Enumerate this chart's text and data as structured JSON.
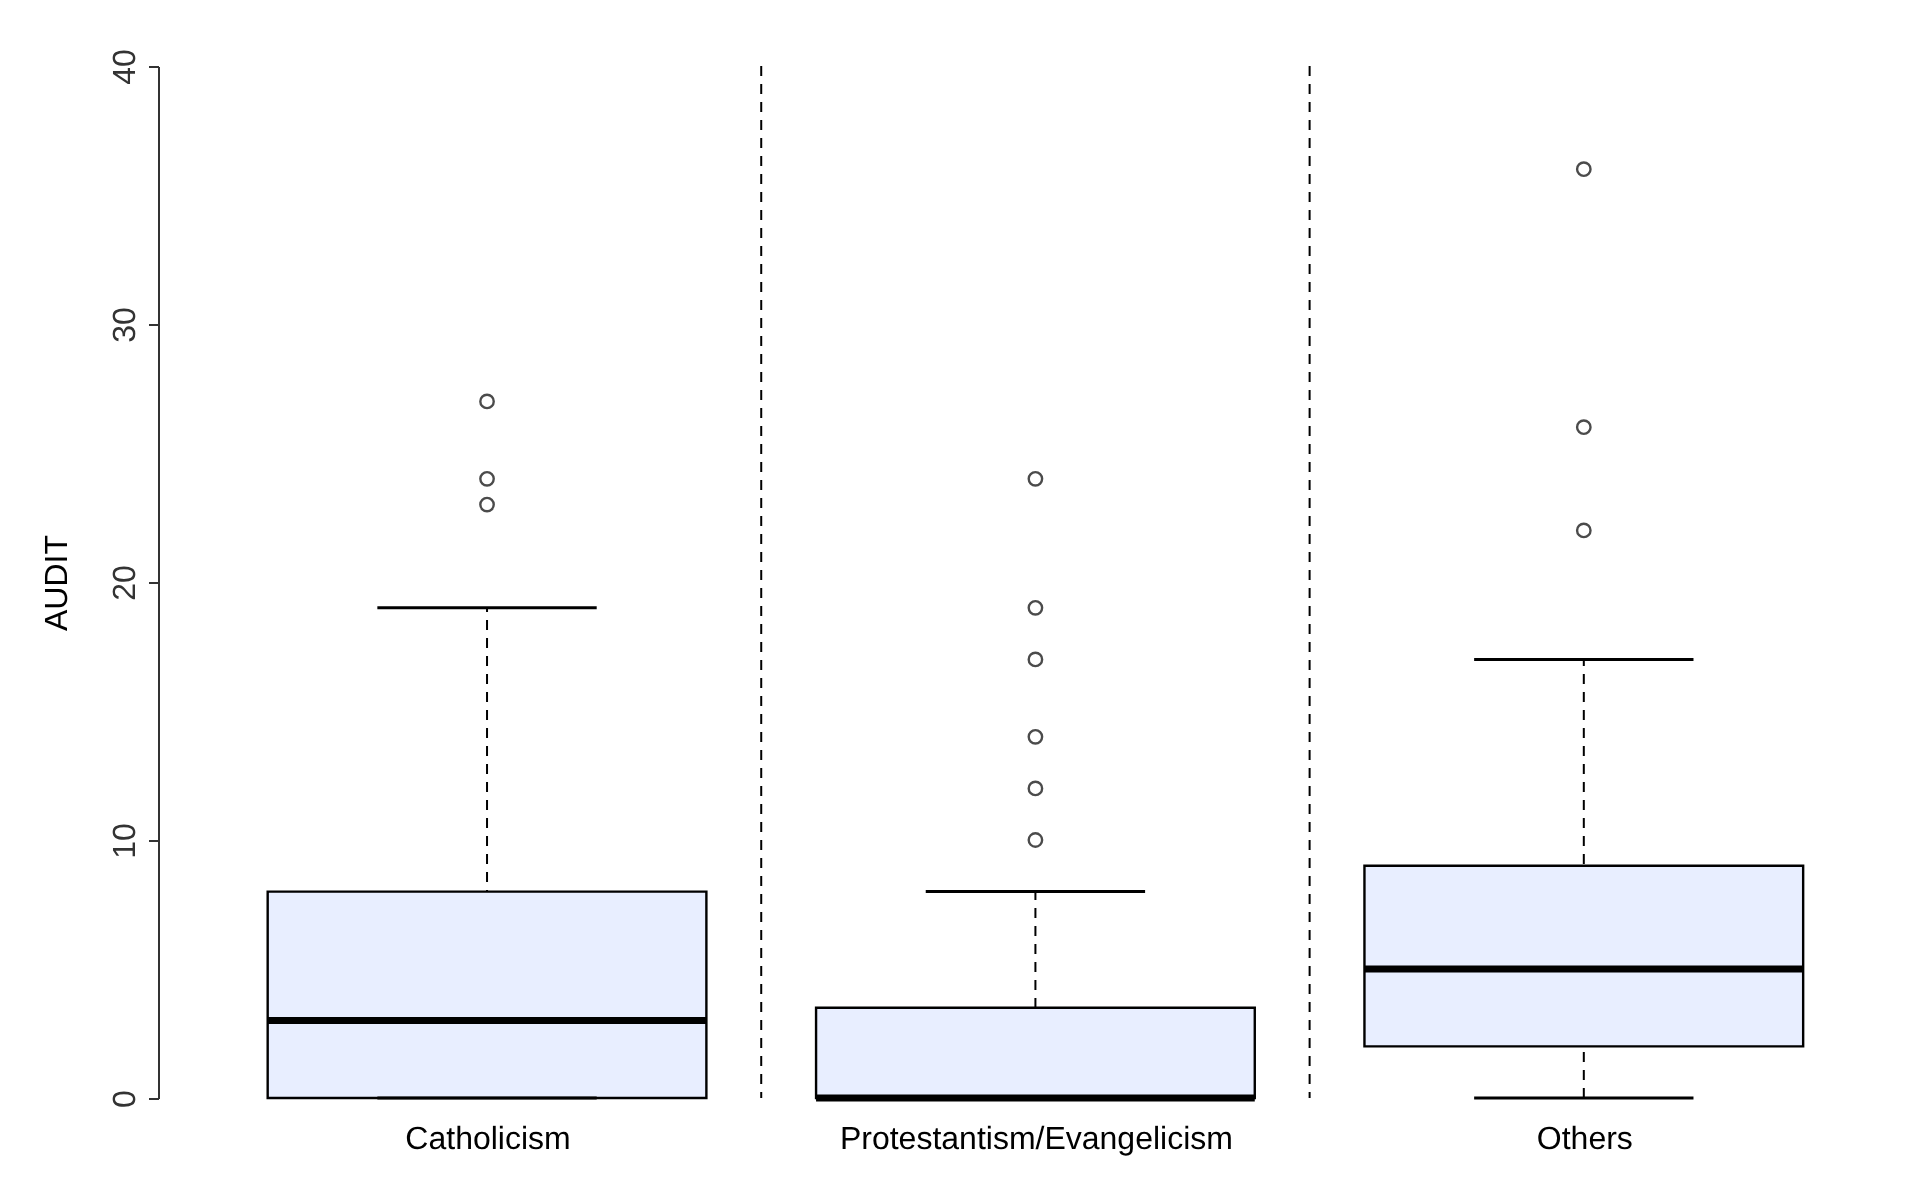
{
  "chart_data": {
    "type": "box",
    "ylabel": "AUDIT",
    "categories": [
      "Catholicism",
      "Protestantism/Evangelicism",
      "Others"
    ],
    "boxes": [
      {
        "low": 0,
        "q1": 0,
        "median": 3,
        "q3": 8,
        "high": 19,
        "outliers": [
          23,
          24,
          27
        ]
      },
      {
        "low": 0,
        "q1": 0,
        "median": 0,
        "q3": 3.5,
        "high": 8,
        "outliers": [
          10,
          12,
          14,
          17,
          19,
          24
        ]
      },
      {
        "low": 0,
        "q1": 2,
        "median": 5,
        "q3": 9,
        "high": 17,
        "outliers": [
          22,
          26,
          36
        ]
      }
    ],
    "color": "#e8eeff",
    "ylim": [
      0,
      40
    ],
    "yticks": [
      0,
      10,
      20,
      30,
      40
    ],
    "grid": false
  }
}
